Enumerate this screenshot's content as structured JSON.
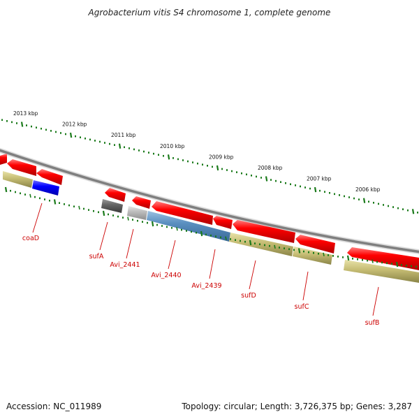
{
  "title": "Agrobacterium vitis S4 chromosome 1, complete genome",
  "footer": {
    "accession": "Accession: NC_011989",
    "summary": "Topology: circular; Length: 3,726,375 bp; Genes: 3,287"
  },
  "scale_labels": [
    "2013 kbp",
    "2012 kbp",
    "2011 kbp",
    "2010 kbp",
    "2009 kbp",
    "2008 kbp",
    "2007 kbp",
    "2006 kbp"
  ],
  "colors": {
    "backbone": "#7f7f7f",
    "tick": "#1a7a1a",
    "cds": "#ff0000",
    "gene": "#bdb76b",
    "label": "#cc0000"
  },
  "gene_labels": [
    "coaD",
    "sufA",
    "Avi_2441",
    "Avi_2440",
    "Avi_2439",
    "sufD",
    "sufC",
    "sufB"
  ]
}
